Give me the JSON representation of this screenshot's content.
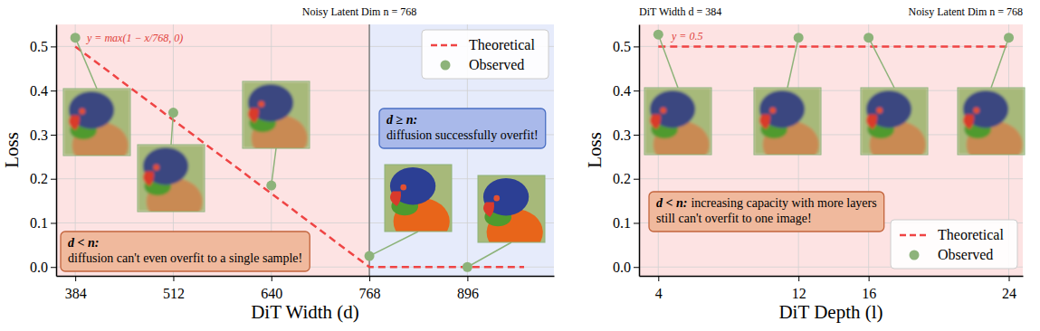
{
  "chart_data": [
    {
      "type": "scatter",
      "title": "Noisy Latent Dim n = 768",
      "x_label": "DiT Width (d)",
      "y_label": "Loss",
      "xlim": [
        359,
        1009
      ],
      "ylim": [
        -0.02,
        0.55
      ],
      "xticks": [
        384,
        512,
        640,
        768,
        896
      ],
      "yticks": [
        {
          "value": 0,
          "label": "0.0"
        },
        0.1,
        0.2,
        0.3,
        0.4,
        0.5
      ],
      "grid": true,
      "legend": "upper right",
      "threshold": 768,
      "series": [
        {
          "name": "Theoretical",
          "type": "line",
          "line_style": "dashed",
          "color": "#ef4444",
          "x": [
            384,
            768,
            970
          ],
          "values": [
            0.5,
            0,
            0
          ]
        },
        {
          "name": "Observed",
          "type": "scatter",
          "marker": "circle",
          "color": "#8db37a",
          "x": [
            384,
            512,
            640,
            768,
            896
          ],
          "values": [
            0.52,
            0.35,
            0.185,
            0.025,
            0.0
          ]
        }
      ],
      "annotations": [
        {
          "text": [
            "y = max(1 − x/768, 0)"
          ]
        },
        {
          "heading": "d ≥ n:",
          "text": [
            "diffusion successfully overfit!"
          ]
        },
        {
          "heading": "d < n:",
          "text": [
            "diffusion can't even overfit to a single sample!"
          ]
        }
      ]
    },
    {
      "type": "scatter",
      "title": "Noisy Latent Dim n = 768",
      "subtitle": "DiT Width d = 384",
      "x_label": "DiT Depth (l)",
      "y_label": "Loss",
      "xlim": [
        2.9,
        24.8
      ],
      "ylim": [
        -0.02,
        0.55
      ],
      "xticks": [
        4,
        12,
        16,
        24
      ],
      "yticks": [
        {
          "value": 0,
          "label": "0.0"
        },
        0.1,
        0.2,
        0.3,
        0.4,
        0.5
      ],
      "grid": true,
      "legend": "lower right",
      "series": [
        {
          "name": "Theoretical",
          "type": "line",
          "line_style": "dashed",
          "color": "#ef4444",
          "x": [
            4,
            24
          ],
          "values": [
            0.5,
            0.5
          ]
        },
        {
          "name": "Observed",
          "type": "scatter",
          "marker": "circle",
          "color": "#8db37a",
          "x": [
            4,
            12,
            16,
            24
          ],
          "values": [
            0.527,
            0.52,
            0.52,
            0.52
          ]
        }
      ],
      "annotations": [
        {
          "text": [
            "y = 0.5"
          ]
        },
        {
          "heading": "d < n:",
          "text": [
            "increasing capacity with more layers",
            "still can't overfit to one image!"
          ]
        }
      ]
    }
  ]
}
